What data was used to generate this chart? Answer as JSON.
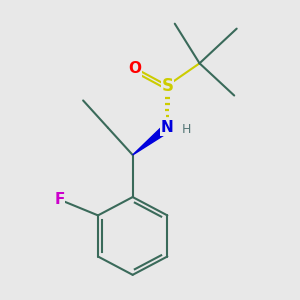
{
  "bg_color": "#e8e8e8",
  "bond_color": "#3a6a5a",
  "bond_width": 1.5,
  "atom_colors": {
    "N": "#0000dd",
    "S": "#cccc00",
    "O": "#ff0000",
    "F": "#cc00cc",
    "H": "#557777"
  },
  "figsize": [
    3.0,
    3.0
  ],
  "dpi": 100
}
